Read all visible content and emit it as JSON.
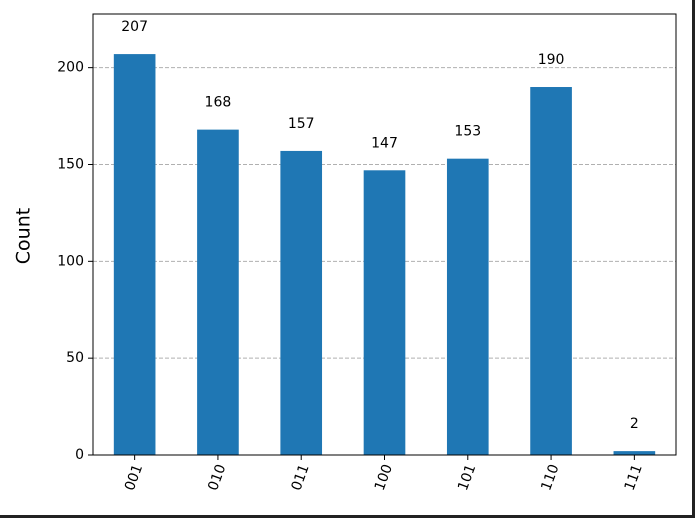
{
  "chart_data": {
    "type": "bar",
    "y_label": "Count",
    "categories": [
      "001",
      "010",
      "011",
      "100",
      "101",
      "110",
      "111"
    ],
    "values": [
      207,
      168,
      157,
      147,
      153,
      190,
      2
    ],
    "color": "#1f77b4",
    "ylim": [
      0,
      227.7
    ],
    "yticks": [
      0,
      50,
      100,
      150,
      200
    ],
    "grid": true
  }
}
